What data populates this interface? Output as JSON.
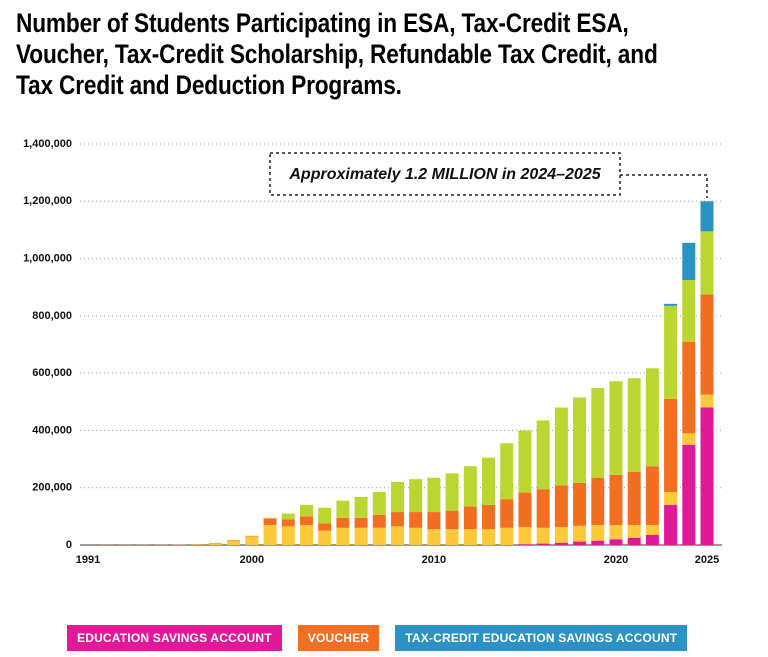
{
  "chart_data": {
    "type": "stacked-bar",
    "title": "Number of Students Participating in ESA, Tax-Credit ESA, Voucher, Tax-Credit Scholarship, Refundable Tax Credit, and Tax Credit and Deduction Programs.",
    "annotation": "Approximately 1.2 MILLION in 2024–2025",
    "x": [
      1991,
      1992,
      1993,
      1994,
      1995,
      1996,
      1997,
      1998,
      1999,
      2000,
      2001,
      2002,
      2003,
      2004,
      2005,
      2006,
      2007,
      2008,
      2009,
      2010,
      2011,
      2012,
      2013,
      2014,
      2015,
      2016,
      2017,
      2018,
      2019,
      2020,
      2021,
      2022,
      2023,
      2024,
      2025
    ],
    "xlim": [
      1991,
      2025
    ],
    "xticks": [
      1991,
      2000,
      2010,
      2020,
      2025
    ],
    "ylim": [
      0,
      1400000
    ],
    "yticks": [
      0,
      {
        "value": 200000,
        "label": "200,000"
      },
      {
        "value": 400000,
        "label": "400,000"
      },
      {
        "value": 600000,
        "label": "600,000"
      },
      {
        "value": 800000,
        "label": "800,000"
      },
      {
        "value": 1000000,
        "label": "1,000,000"
      },
      {
        "value": 1200000,
        "label": "1,200,000"
      },
      {
        "value": 1400000,
        "label": "1,400,000"
      }
    ],
    "grid": true,
    "series": [
      {
        "name": "EDUCATION SAVINGS ACCOUNT",
        "color": "#e0199b",
        "values": [
          0,
          0,
          0,
          0,
          0,
          0,
          0,
          0,
          0,
          0,
          0,
          0,
          0,
          0,
          0,
          0,
          0,
          0,
          0,
          0,
          0,
          0,
          0,
          0,
          3000,
          5000,
          8000,
          12000,
          15000,
          20000,
          25000,
          35000,
          140000,
          350000,
          480000
        ]
      },
      {
        "color": "#fcc93a",
        "values": [
          0,
          0,
          0,
          0,
          0,
          0,
          2000,
          5000,
          15000,
          30000,
          70000,
          65000,
          70000,
          50000,
          60000,
          60000,
          60000,
          65000,
          60000,
          55000,
          55000,
          55000,
          55000,
          60000,
          60000,
          55000,
          55000,
          55000,
          55000,
          50000,
          45000,
          35000,
          45000,
          40000,
          45000
        ]
      },
      {
        "name": "VOUCHER",
        "color": "#f26f21",
        "values": [
          300,
          600,
          700,
          800,
          1000,
          1500,
          1500,
          1500,
          2000,
          2000,
          22000,
          25000,
          30000,
          25000,
          35000,
          35000,
          45000,
          50000,
          55000,
          60000,
          65000,
          80000,
          85000,
          100000,
          120000,
          135000,
          145000,
          150000,
          165000,
          175000,
          185000,
          205000,
          325000,
          320000,
          350000
        ]
      },
      {
        "color": "#bcd631",
        "values": [
          0,
          0,
          0,
          0,
          0,
          0,
          0,
          0,
          0,
          0,
          3000,
          20000,
          40000,
          55000,
          60000,
          73000,
          80000,
          105000,
          115000,
          120000,
          130000,
          140000,
          165000,
          195000,
          217000,
          240000,
          272000,
          298000,
          313000,
          327000,
          327000,
          342000,
          325000,
          215000,
          220000
        ]
      },
      {
        "name": "TAX-CREDIT EDUCATION SAVINGS ACCOUNT",
        "color": "#2b93c4",
        "values": [
          0,
          0,
          0,
          0,
          0,
          0,
          0,
          0,
          0,
          0,
          0,
          0,
          0,
          0,
          0,
          0,
          0,
          0,
          0,
          0,
          0,
          0,
          0,
          0,
          0,
          0,
          0,
          0,
          0,
          0,
          0,
          0,
          7000,
          130000,
          105000
        ]
      }
    ]
  }
}
